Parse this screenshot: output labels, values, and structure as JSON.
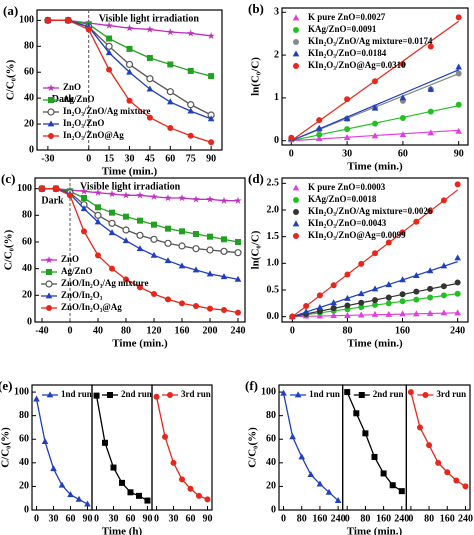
{
  "chart_data": [
    {
      "type": "line",
      "label": "(a)",
      "x_label": "Time (min.)",
      "y_label": "C/C₀(%)",
      "irradiation_label": "Visible light irradiation",
      "dark_label": "Dark",
      "x": [
        -30,
        -15,
        0,
        15,
        30,
        45,
        60,
        75,
        90
      ],
      "xlim": [
        -38,
        98
      ],
      "xticks": [
        -30,
        0,
        15,
        30,
        45,
        60,
        75,
        90
      ],
      "ylim": [
        0,
        108
      ],
      "yticks": [
        0,
        20,
        40,
        60,
        80,
        100
      ],
      "legend": "lower left",
      "series": [
        {
          "name": "ZnO",
          "color": "#c030c0",
          "marker": "star",
          "values": [
            100,
            100,
            98,
            96,
            94,
            93,
            91,
            90,
            88
          ]
        },
        {
          "name": "Ag/ZnO",
          "color": "#22a022",
          "marker": "square",
          "values": [
            100,
            100,
            97,
            86,
            78,
            71,
            66,
            61,
            57
          ]
        },
        {
          "name": "In₂O₃/ZnO/Ag mixture",
          "color": "#555555",
          "marker": "circle",
          "values": [
            100,
            100,
            95,
            80,
            66,
            55,
            45,
            35,
            27
          ]
        },
        {
          "name": "In₂O₃/ZnO",
          "color": "#1f3fbf",
          "marker": "triangle",
          "values": [
            100,
            100,
            95,
            75,
            60,
            47,
            37,
            30,
            24
          ]
        },
        {
          "name": "In₂O₃/ZnO@Ag",
          "color": "#e8261c",
          "marker": "dot",
          "values": [
            100,
            100,
            93,
            62,
            38,
            25,
            17,
            11,
            6
          ]
        }
      ]
    },
    {
      "type": "scatter_fit",
      "label": "(b)",
      "x_label": "Time (min.)",
      "y_label": "ln(C₀/C)",
      "x": [
        0,
        15,
        30,
        45,
        60,
        75,
        90
      ],
      "xlim": [
        -5,
        95
      ],
      "xticks": [
        0,
        30,
        60,
        90
      ],
      "ylim": [
        -0.1,
        3.1
      ],
      "yticks": [
        0,
        1,
        2,
        3
      ],
      "legend": "upper left",
      "series": [
        {
          "name": "K pure ZnO=0.0027",
          "k": 0.0027,
          "color": "#e040e0",
          "marker": "triangle",
          "values": [
            0.02,
            0.05,
            0.07,
            0.11,
            0.14,
            0.18,
            0.22
          ]
        },
        {
          "name": "KAg/ZnO=0.0091",
          "k": 0.0091,
          "color": "#22c022",
          "marker": "dot",
          "values": [
            0.03,
            0.14,
            0.27,
            0.4,
            0.53,
            0.68,
            0.84
          ]
        },
        {
          "name": "KIn₂O₃/ZnO/Ag mixture=0.0174",
          "k": 0.0174,
          "color": "#888888",
          "marker": "dot",
          "values": [
            0.05,
            0.26,
            0.52,
            0.78,
            0.93,
            1.2,
            1.57
          ]
        },
        {
          "name": "KIn₂O₃/ZnO=0.0184",
          "k": 0.0184,
          "color": "#1f3fbf",
          "marker": "triangle",
          "values": [
            0.05,
            0.29,
            0.51,
            0.76,
            1.0,
            1.2,
            1.72
          ]
        },
        {
          "name": "KIn₂O₃/ZnO@Ag=0.0310",
          "k": 0.031,
          "color": "#e8261c",
          "marker": "dot",
          "values": [
            0.07,
            0.48,
            0.97,
            1.39,
            1.79,
            2.2,
            2.88
          ]
        }
      ]
    },
    {
      "type": "line",
      "label": "(c)",
      "x_label": "Time (min.)",
      "y_label": "C/C₀(%)",
      "irradiation_label": "Visible light irradiation",
      "dark_label": "Dark",
      "x": [
        -40,
        -20,
        0,
        20,
        40,
        60,
        80,
        100,
        120,
        140,
        160,
        180,
        200,
        220,
        240
      ],
      "xlim": [
        -50,
        250
      ],
      "xticks": [
        -40,
        0,
        40,
        80,
        120,
        160,
        200,
        240
      ],
      "ylim": [
        0,
        108
      ],
      "yticks": [
        0,
        20,
        40,
        60,
        80,
        100
      ],
      "legend": "lower left",
      "series": [
        {
          "name": "ZnO",
          "color": "#c030c0",
          "marker": "star",
          "values": [
            100,
            100,
            99,
            98,
            97,
            96,
            95,
            95,
            94,
            93,
            93,
            92,
            92,
            91,
            91
          ]
        },
        {
          "name": "Ag/ZnO",
          "color": "#22a022",
          "marker": "square",
          "values": [
            100,
            100,
            98,
            93,
            86,
            82,
            79,
            76,
            73,
            70,
            68,
            66,
            64,
            62,
            60
          ]
        },
        {
          "name": "ZnO/In₂O₃/Ag mixture",
          "color": "#555555",
          "marker": "circle",
          "values": [
            100,
            100,
            97,
            88,
            80,
            74,
            69,
            65,
            62,
            59,
            57,
            55,
            54,
            53,
            52
          ]
        },
        {
          "name": "ZnO/In₂O₃",
          "color": "#1f3fbf",
          "marker": "triangle",
          "values": [
            100,
            100,
            96,
            85,
            75,
            67,
            61,
            55,
            50,
            46,
            42,
            39,
            36,
            34,
            32
          ]
        },
        {
          "name": "ZnO/In₂O₃@Ag",
          "color": "#e8261c",
          "marker": "dot",
          "values": [
            100,
            100,
            95,
            68,
            50,
            40,
            32,
            26,
            21,
            17,
            14,
            12,
            10,
            9,
            7
          ]
        }
      ]
    },
    {
      "type": "scatter_fit",
      "label": "(d)",
      "x_label": "Time (min.)",
      "y_label": "ln(C₀/C)",
      "x": [
        0,
        20,
        40,
        60,
        80,
        100,
        120,
        140,
        160,
        180,
        200,
        220,
        240
      ],
      "xlim": [
        -15,
        255
      ],
      "xticks": [
        0,
        80,
        160,
        240
      ],
      "ylim": [
        -0.1,
        2.6
      ],
      "yticks": [
        {
          "value": 0,
          "label": "0.0"
        },
        0.5,
        {
          "value": 1,
          "label": "1.0"
        },
        1.5,
        {
          "value": 2,
          "label": "2.0"
        },
        2.5
      ],
      "legend": "upper left",
      "series": [
        {
          "name": "K pure ZnO=0.0003",
          "k": 0.0003,
          "color": "#e040e0",
          "marker": "triangle",
          "values": [
            0,
            0.01,
            0.01,
            0.02,
            0.02,
            0.03,
            0.04,
            0.04,
            0.05,
            0.05,
            0.06,
            0.07,
            0.07
          ]
        },
        {
          "name": "KAg/ZnO=0.0018",
          "k": 0.0018,
          "color": "#22c022",
          "marker": "dot",
          "values": [
            0,
            0.04,
            0.07,
            0.11,
            0.14,
            0.18,
            0.22,
            0.25,
            0.29,
            0.32,
            0.36,
            0.4,
            0.43
          ]
        },
        {
          "name": "KIn₂O₃/ZnO/Ag mixture=0.0026",
          "k": 0.0026,
          "color": "#333333",
          "marker": "dot",
          "values": [
            0,
            0.05,
            0.1,
            0.16,
            0.21,
            0.26,
            0.31,
            0.36,
            0.42,
            0.47,
            0.52,
            0.57,
            0.64
          ]
        },
        {
          "name": "KIn₂O₃/ZnO=0.0043",
          "k": 0.0043,
          "color": "#1f3fbf",
          "marker": "triangle",
          "values": [
            0,
            0.09,
            0.17,
            0.26,
            0.34,
            0.43,
            0.52,
            0.6,
            0.69,
            0.77,
            0.86,
            0.95,
            1.1
          ]
        },
        {
          "name": "KIn₂O₃/ZnO@Ag=0.0099",
          "k": 0.0099,
          "color": "#e8261c",
          "marker": "dot",
          "values": [
            0,
            0.2,
            0.4,
            0.59,
            0.79,
            0.99,
            1.19,
            1.39,
            1.58,
            1.78,
            1.98,
            2.18,
            2.48
          ]
        }
      ]
    },
    {
      "type": "small_multiples",
      "label": "(e)",
      "x_label": "Time (h)",
      "y_label": "C/C₀(%)",
      "x": [
        0,
        15,
        30,
        45,
        60,
        75,
        90
      ],
      "xlim": [
        -8,
        98
      ],
      "xticks": [
        0,
        30,
        60,
        90
      ],
      "ylim": [
        0,
        106
      ],
      "yticks": [
        0,
        20,
        40,
        60,
        80,
        100
      ],
      "series": [
        {
          "name": "1nd run",
          "color": "#1f3fbf",
          "marker": "triangle",
          "values": [
            94,
            58,
            35,
            21,
            13,
            9,
            5
          ]
        },
        {
          "name": "2nd run",
          "color": "#000000",
          "marker": "square",
          "values": [
            97,
            57,
            36,
            23,
            15,
            12,
            8
          ]
        },
        {
          "name": "3rd run",
          "color": "#e8261c",
          "marker": "dot",
          "values": [
            96,
            62,
            40,
            26,
            18,
            12,
            9
          ]
        }
      ]
    },
    {
      "type": "small_multiples",
      "label": "(f)",
      "x_label": "Time (min.)",
      "y_label": "C/C₀(%)",
      "x": [
        0,
        40,
        80,
        120,
        160,
        200,
        240
      ],
      "xlim": [
        -20,
        260
      ],
      "xticks": [
        0,
        80,
        160,
        240
      ],
      "ylim": [
        0,
        106
      ],
      "yticks": [
        0,
        20,
        40,
        60,
        80,
        100
      ],
      "series": [
        {
          "name": "1nd run",
          "color": "#1f3fbf",
          "marker": "triangle",
          "values": [
            99,
            62,
            45,
            30,
            22,
            15,
            8
          ]
        },
        {
          "name": "2nd run",
          "color": "#000000",
          "marker": "square",
          "values": [
            100,
            82,
            65,
            45,
            31,
            21,
            16
          ]
        },
        {
          "name": "3rd run",
          "color": "#e8261c",
          "marker": "dot",
          "values": [
            100,
            70,
            55,
            40,
            32,
            25,
            20
          ]
        }
      ]
    }
  ]
}
